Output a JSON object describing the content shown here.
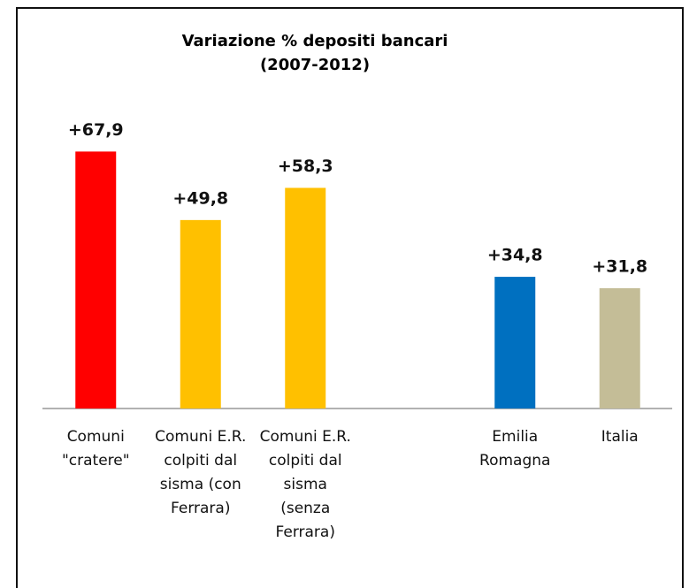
{
  "chart_data": {
    "type": "bar",
    "title": "Variazione % depositi bancari",
    "subtitle": "(2007-2012)",
    "categories": [
      "Comuni \"cratere\"",
      "Comuni E.R. colpiti dal sisma (con Ferrara)",
      "Comuni E.R. colpiti dal sisma (senza Ferrara)",
      null,
      "Emilia Romagna",
      "Italia"
    ],
    "values": [
      67.9,
      49.8,
      58.3,
      null,
      34.8,
      31.8
    ],
    "value_labels": [
      "+67,9",
      "+49,8",
      "+58,3",
      null,
      "+34,8",
      "+31,8"
    ],
    "colors": [
      "#ff0000",
      "#ffc000",
      "#ffc000",
      null,
      "#0070c0",
      "#c4bd97"
    ],
    "ylim": [
      0,
      100
    ]
  }
}
